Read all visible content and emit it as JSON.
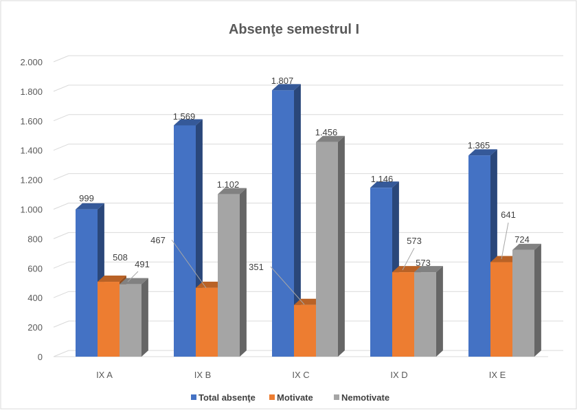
{
  "chart_data": {
    "type": "bar",
    "title": "Absenţe semestrul I",
    "categories": [
      "IX A",
      "IX B",
      "IX C",
      "IX D",
      "IX E"
    ],
    "series": [
      {
        "name": "Total absenţe",
        "values": [
          999,
          1569,
          1807,
          1146,
          1365
        ],
        "color": "#4472C4"
      },
      {
        "name": "Motivate",
        "values": [
          508,
          467,
          351,
          573,
          641
        ],
        "color": "#ED7D31"
      },
      {
        "name": "Nemotivate",
        "values": [
          491,
          1102,
          1456,
          573,
          724
        ],
        "color": "#A5A5A5"
      }
    ],
    "ylim": [
      0,
      2000
    ],
    "yticks": [
      0,
      200,
      400,
      600,
      800,
      1000,
      1200,
      1400,
      1600,
      1800,
      2000
    ],
    "ytick_labels": [
      "0",
      "200",
      "400",
      "600",
      "800",
      "1.000",
      "1.200",
      "1.400",
      "1.600",
      "1.800",
      "2.000"
    ],
    "data_labels": [
      [
        "999",
        "1.569",
        "1.807",
        "1.146",
        "1.365"
      ],
      [
        "508",
        "467",
        "351",
        "573",
        "641"
      ],
      [
        "491",
        "1.102",
        "1.456",
        "573",
        "724"
      ]
    ],
    "grid": true,
    "legend_position": "bottom",
    "style": "3d-clustered-column"
  }
}
